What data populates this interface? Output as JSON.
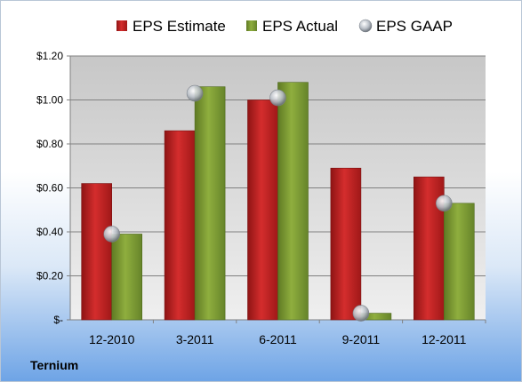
{
  "company_label": "Ternium",
  "colors": {
    "estimate": "#d42d2d",
    "actual": "#8fae3e",
    "gaap": "#b8bec6",
    "plot_bg_top": "#c7c7c7",
    "plot_bg_bottom": "#efefef",
    "grid": "#808080"
  },
  "chart_data": {
    "type": "bar",
    "title": "",
    "xlabel": "",
    "ylabel": "",
    "categories": [
      "12-2010",
      "3-2011",
      "6-2011",
      "9-2011",
      "12-2011"
    ],
    "series": [
      {
        "name": "EPS Estimate",
        "kind": "bar",
        "values": [
          0.62,
          0.86,
          1.0,
          0.69,
          0.65
        ]
      },
      {
        "name": "EPS Actual",
        "kind": "bar",
        "values": [
          0.39,
          1.06,
          1.08,
          0.03,
          0.53
        ]
      },
      {
        "name": "EPS GAAP",
        "kind": "marker",
        "values": [
          0.39,
          1.03,
          1.01,
          0.03,
          0.53
        ]
      }
    ],
    "ylim": [
      0,
      1.2
    ],
    "yticks": [
      0,
      0.2,
      0.4,
      0.6,
      0.8,
      1.0,
      1.2
    ],
    "ytick_labels": [
      "$-",
      "$0.20",
      "$0.40",
      "$0.60",
      "$0.80",
      "$1.00",
      "$1.20"
    ],
    "grid": true,
    "legend_position": "top"
  }
}
